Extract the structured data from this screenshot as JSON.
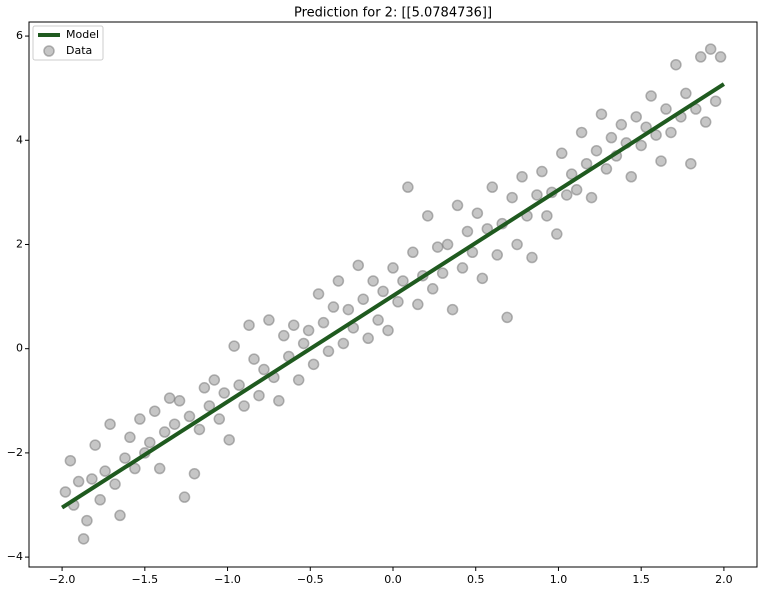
{
  "chart_data": {
    "type": "scatter",
    "title": "Prediction for 2: [[5.0784736]]",
    "xlim": [
      -2.2,
      2.2
    ],
    "ylim": [
      -4.19,
      6.27
    ],
    "xticks": [
      {
        "value": -2,
        "label": "−2.0"
      },
      {
        "value": -1.5,
        "label": "−1.5"
      },
      {
        "value": -1,
        "label": "−1.0"
      },
      {
        "value": -0.5,
        "label": "−0.5"
      },
      {
        "value": 0,
        "label": "0.0"
      },
      0.5,
      {
        "value": 1,
        "label": "1.0"
      },
      1.5,
      {
        "value": 2,
        "label": "2.0"
      }
    ],
    "yticks": [
      {
        "value": -4,
        "label": "−4"
      },
      {
        "value": -2,
        "label": "−2"
      },
      0,
      2,
      4,
      6
    ],
    "legend": "upper left",
    "legend_text_color": "#1f5a1f",
    "series": [
      {
        "name": "Model",
        "type": "line",
        "color": "#1f5a1f",
        "x": [
          -2,
          2
        ],
        "y": [
          -3.05,
          5.0784736
        ]
      },
      {
        "name": "Data",
        "type": "scatter",
        "color": "#808080",
        "x": [
          -1.98,
          -1.95,
          -1.93,
          -1.9,
          -1.87,
          -1.85,
          -1.82,
          -1.8,
          -1.77,
          -1.74,
          -1.71,
          -1.68,
          -1.65,
          -1.62,
          -1.59,
          -1.56,
          -1.53,
          -1.5,
          -1.47,
          -1.44,
          -1.41,
          -1.38,
          -1.35,
          -1.32,
          -1.29,
          -1.26,
          -1.23,
          -1.2,
          -1.17,
          -1.14,
          -1.11,
          -1.08,
          -1.05,
          -1.02,
          -0.99,
          -0.96,
          -0.93,
          -0.9,
          -0.87,
          -0.84,
          -0.81,
          -0.78,
          -0.75,
          -0.72,
          -0.69,
          -0.66,
          -0.63,
          -0.6,
          -0.57,
          -0.54,
          -0.51,
          -0.48,
          -0.45,
          -0.42,
          -0.39,
          -0.36,
          -0.33,
          -0.3,
          -0.27,
          -0.24,
          -0.21,
          -0.18,
          -0.15,
          -0.12,
          -0.09,
          -0.06,
          -0.03,
          0,
          0.03,
          0.06,
          0.09,
          0.12,
          0.15,
          0.18,
          0.21,
          0.24,
          0.27,
          0.3,
          0.33,
          0.36,
          0.39,
          0.42,
          0.45,
          0.48,
          0.51,
          0.54,
          0.57,
          0.6,
          0.63,
          0.66,
          0.69,
          0.72,
          0.75,
          0.78,
          0.81,
          0.84,
          0.87,
          0.9,
          0.93,
          0.96,
          0.99,
          1.02,
          1.05,
          1.08,
          1.11,
          1.14,
          1.17,
          1.2,
          1.23,
          1.26,
          1.29,
          1.32,
          1.35,
          1.38,
          1.41,
          1.44,
          1.47,
          1.5,
          1.53,
          1.56,
          1.59,
          1.62,
          1.65,
          1.68,
          1.71,
          1.74,
          1.77,
          1.8,
          1.83,
          1.86,
          1.89,
          1.92,
          1.95,
          1.98
        ],
        "y": [
          -2.75,
          -2.15,
          -3,
          -2.55,
          -3.65,
          -3.3,
          -2.5,
          -1.85,
          -2.9,
          -2.35,
          -1.45,
          -2.6,
          -3.2,
          -2.1,
          -1.7,
          -2.3,
          -1.35,
          -2,
          -1.8,
          -1.2,
          -2.3,
          -1.6,
          -0.95,
          -1.45,
          -1,
          -2.85,
          -1.3,
          -2.4,
          -1.55,
          -0.75,
          -1.1,
          -0.6,
          -1.35,
          -0.85,
          -1.75,
          0.05,
          -0.7,
          -1.1,
          0.45,
          -0.2,
          -0.9,
          -0.4,
          0.55,
          -0.55,
          -1,
          0.25,
          -0.15,
          0.45,
          -0.6,
          0.1,
          0.35,
          -0.3,
          1.05,
          0.5,
          -0.05,
          0.8,
          1.3,
          0.1,
          0.75,
          0.4,
          1.6,
          0.95,
          0.2,
          1.3,
          0.55,
          1.1,
          0.35,
          1.55,
          0.9,
          1.3,
          3.1,
          1.85,
          0.85,
          1.4,
          2.55,
          1.15,
          1.95,
          1.45,
          2,
          0.75,
          2.75,
          1.55,
          2.25,
          1.85,
          2.6,
          1.35,
          2.3,
          3.1,
          1.8,
          2.4,
          0.6,
          2.9,
          2,
          3.3,
          2.55,
          1.75,
          2.95,
          3.4,
          2.55,
          3,
          2.2,
          3.75,
          2.95,
          3.35,
          3.05,
          4.15,
          3.55,
          2.9,
          3.8,
          4.5,
          3.45,
          4.05,
          3.7,
          4.3,
          3.95,
          3.3,
          4.45,
          3.9,
          4.25,
          4.85,
          4.1,
          3.6,
          4.6,
          4.15,
          5.45,
          4.45,
          4.9,
          3.55,
          4.6,
          5.6,
          4.35,
          5.75,
          4.75,
          5.6
        ]
      }
    ]
  }
}
